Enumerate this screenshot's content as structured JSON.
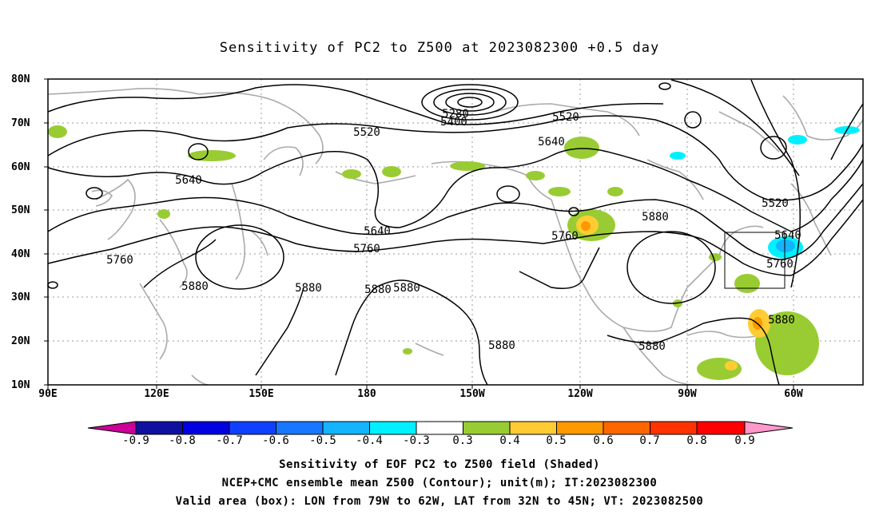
{
  "title": "Sensitivity of PC2 to Z500 at 2023082300 +0.5 day",
  "lat_labels": [
    "80N",
    "70N",
    "60N",
    "50N",
    "40N",
    "30N",
    "20N",
    "10N"
  ],
  "lon_labels": [
    "90E",
    "120E",
    "150E",
    "180",
    "150W",
    "120W",
    "90W",
    "60W"
  ],
  "contour_labels": [
    "5280",
    "5400",
    "5520",
    "5520",
    "5640",
    "5640",
    "5640",
    "5520",
    "5640",
    "5760",
    "5760",
    "5760",
    "5760",
    "5880",
    "5880",
    "5880",
    "5880",
    "5880",
    "5880",
    "5880"
  ],
  "colorbar": {
    "ticks": [
      "-0.9",
      "-0.8",
      "-0.7",
      "-0.6",
      "-0.5",
      "-0.4",
      "-0.3",
      "0.3",
      "0.4",
      "0.5",
      "0.6",
      "0.7",
      "0.8",
      "0.9"
    ],
    "colors": [
      "#1010a0",
      "#0000e0",
      "#1040ff",
      "#1877ff",
      "#14b4ff",
      "#00f0ff",
      "#ffffff",
      "#99cc33",
      "#ffcc33",
      "#ff9900",
      "#ff6600",
      "#ff3300",
      "#ff0000"
    ],
    "under_color": "#cc0099",
    "over_color": "#ff99cc"
  },
  "footer": {
    "line1": "Sensitivity of EOF PC2 to Z500 field (Shaded)",
    "line2": "NCEP+CMC ensemble mean Z500 (Contour); unit(m); IT:2023082300",
    "line3": "Valid area (box): LON from 79W to 62W, LAT from 32N to 45N; VT: 2023082500"
  },
  "valid_box": {
    "lon": [
      "79W",
      "62W"
    ],
    "lat": [
      "32N",
      "45N"
    ]
  }
}
